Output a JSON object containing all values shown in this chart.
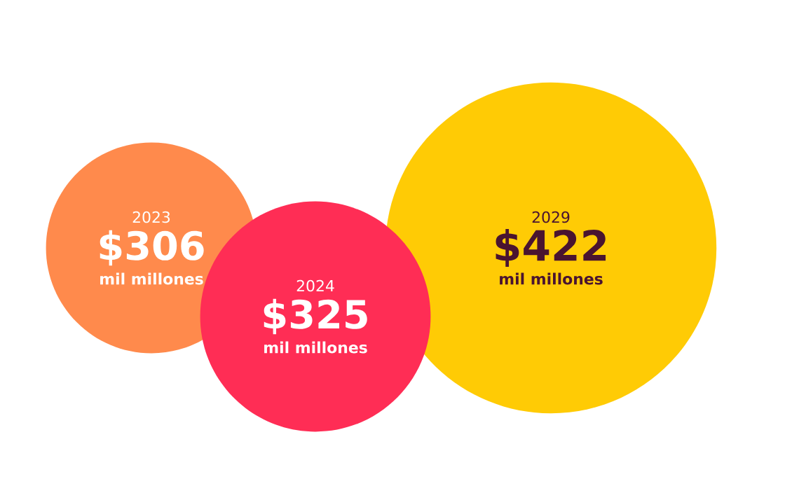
{
  "chart_data": {
    "type": "other",
    "categories": [
      "2023",
      "2024",
      "2029"
    ],
    "values": [
      306,
      325,
      422
    ],
    "value_labels": [
      "$306",
      "$325",
      "$422"
    ],
    "colors": [
      "#ff8a4c",
      "#ff2d55",
      "#ffcb05"
    ],
    "annotations": [
      "mil millones",
      "mil millones",
      "mil millones"
    ]
  }
}
